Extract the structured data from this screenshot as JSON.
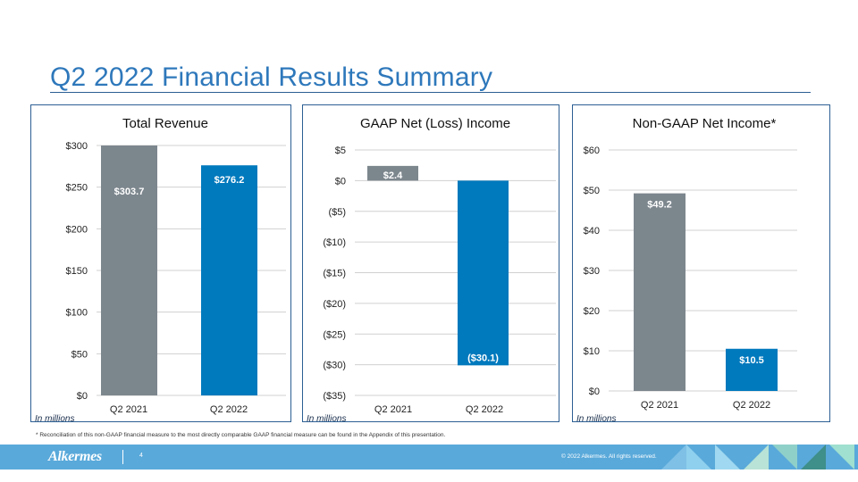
{
  "header": {
    "title": "Q2 2022 Financial Results Summary"
  },
  "colors": {
    "accent": "#2e78bb",
    "bar_q2_2021": "#7c868d",
    "bar_q2_2022": "#0079bd",
    "footer": "#59a9da"
  },
  "chart_data": [
    {
      "type": "bar",
      "title": "Total Revenue",
      "categories": [
        "Q2 2021",
        "Q2 2022"
      ],
      "values": [
        303.7,
        276.2
      ],
      "value_labels": [
        "$303.7",
        "$276.2"
      ],
      "yticks": [
        "$0",
        "$50",
        "$100",
        "$150",
        "$200",
        "$250",
        "$300"
      ],
      "ylim": [
        0,
        300
      ],
      "ytick_values": [
        0,
        50,
        100,
        150,
        200,
        250,
        300
      ],
      "grid": true,
      "note": "In millions"
    },
    {
      "type": "bar",
      "title": "GAAP Net (Loss) Income",
      "categories": [
        "Q2 2021",
        "Q2 2022"
      ],
      "values": [
        2.4,
        -30.1
      ],
      "value_labels": [
        "$2.4",
        "($30.1)"
      ],
      "yticks": [
        "($35)",
        "($30)",
        "($25)",
        "($20)",
        "($15)",
        "($10)",
        "($5)",
        "$0",
        "$5"
      ],
      "ylim": [
        -35,
        5
      ],
      "ytick_values": [
        -35,
        -30,
        -25,
        -20,
        -15,
        -10,
        -5,
        0,
        5
      ],
      "grid": true,
      "note": "In millions"
    },
    {
      "type": "bar",
      "title": "Non-GAAP Net Income*",
      "categories": [
        "Q2 2021",
        "Q2 2022"
      ],
      "values": [
        49.2,
        10.5
      ],
      "value_labels": [
        "$49.2",
        "$10.5"
      ],
      "yticks": [
        "$0",
        "$10",
        "$20",
        "$30",
        "$40",
        "$50",
        "$60"
      ],
      "ylim": [
        0,
        60
      ],
      "ytick_values": [
        0,
        10,
        20,
        30,
        40,
        50,
        60
      ],
      "grid": true,
      "note": "In millions"
    }
  ],
  "footnote": "* Reconciliation of this non-GAAP financial measure to the most directly comparable GAAP financial measure can be found in the Appendix of this presentation.",
  "footer": {
    "logo": "Alkermes",
    "page_number": "4",
    "copyright": "© 2022 Alkermes. All rights reserved."
  }
}
